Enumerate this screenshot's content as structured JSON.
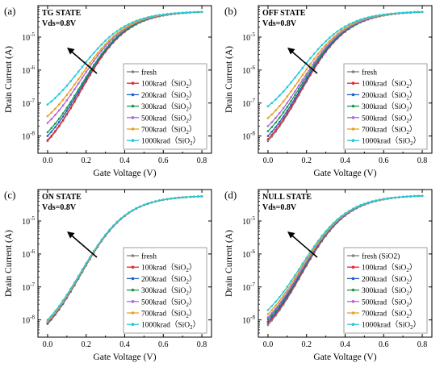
{
  "figure": {
    "xlabel": "Gate Voltage (V)",
    "ylabel": "Drain Current (A)",
    "x_ticks": [
      "0.0",
      "0.2",
      "0.4",
      "0.6",
      "0.8"
    ],
    "y_tick_labels": [
      {
        "exp": -8,
        "base": "10",
        "power": "-8"
      },
      {
        "exp": -7,
        "base": "10",
        "power": "-7"
      },
      {
        "exp": -6,
        "base": "10",
        "power": "-6"
      },
      {
        "exp": -5,
        "base": "10",
        "power": "-5"
      }
    ]
  },
  "series_colors": [
    "#808080",
    "#e8282d",
    "#1f5fc8",
    "#1a9a4a",
    "#b065e0",
    "#e8a020",
    "#22c8d8"
  ],
  "chart_data": [
    {
      "type": "line",
      "panel_letter": "(a)",
      "state": "TG STATE",
      "condition": "Vds=0.8V",
      "xlabel": "Gate Voltage (V)",
      "ylabel": "Drain Current (A)",
      "xlim": [
        -0.05,
        0.85
      ],
      "ylim": [
        3e-09,
        9e-05
      ],
      "yscale": "log",
      "legend_position": "bottom-right",
      "x": [
        0,
        0.02,
        0.04,
        0.06,
        0.08,
        0.1,
        0.12,
        0.14,
        0.16,
        0.18,
        0.2,
        0.22,
        0.24,
        0.26,
        0.28,
        0.3,
        0.32,
        0.34,
        0.36,
        0.38,
        0.4,
        0.42,
        0.44,
        0.46,
        0.48,
        0.5,
        0.52,
        0.54,
        0.56,
        0.58,
        0.6,
        0.62,
        0.64,
        0.66,
        0.68,
        0.7,
        0.72,
        0.74,
        0.76,
        0.78,
        0.8
      ],
      "series": [
        {
          "name": "fresh",
          "ionset": 7e-09,
          "ion": 5.8e-05
        },
        {
          "name": "100krad(SiO2)",
          "label_main": "100krad",
          "label_sub": "2",
          "ionset": 7.5e-09,
          "ion": 5.8e-05
        },
        {
          "name": "200krad(SiO2)",
          "label_main": "200krad",
          "label_sub": "2",
          "ionset": 1e-08,
          "ion": 5.8e-05
        },
        {
          "name": "300krad(SiO2)",
          "label_main": "300krad",
          "label_sub": "2",
          "ionset": 1.3e-08,
          "ion": 5.8e-05
        },
        {
          "name": "500krad(SiO2)",
          "label_main": "500krad",
          "label_sub": "2",
          "ionset": 2.5e-08,
          "ion": 5.8e-05
        },
        {
          "name": "700krad(SiO2)",
          "label_main": "700krad",
          "label_sub": "2",
          "ionset": 4e-08,
          "ion": 5.8e-05
        },
        {
          "name": "1000krad(SiO2)",
          "label_main": "1000krad",
          "label_sub": "2",
          "ionset": 9e-08,
          "ion": 5.8e-05
        }
      ]
    },
    {
      "type": "line",
      "panel_letter": "(b)",
      "state": "OFF STATE",
      "condition": "Vds=0.8V",
      "xlabel": "Gate Voltage (V)",
      "ylabel": "Drain Current (A)",
      "xlim": [
        -0.05,
        0.85
      ],
      "ylim": [
        3e-09,
        9e-05
      ],
      "yscale": "log",
      "legend_position": "bottom-right",
      "x": [
        0,
        0.02,
        0.04,
        0.06,
        0.08,
        0.1,
        0.12,
        0.14,
        0.16,
        0.18,
        0.2,
        0.22,
        0.24,
        0.26,
        0.28,
        0.3,
        0.32,
        0.34,
        0.36,
        0.38,
        0.4,
        0.42,
        0.44,
        0.46,
        0.48,
        0.5,
        0.52,
        0.54,
        0.56,
        0.58,
        0.6,
        0.62,
        0.64,
        0.66,
        0.68,
        0.7,
        0.72,
        0.74,
        0.76,
        0.78,
        0.8
      ],
      "series": [
        {
          "name": "fresh",
          "ionset": 7e-09,
          "ion": 5.8e-05
        },
        {
          "name": "100krad(SiO2)",
          "label_main": "100krad",
          "label_sub": "2",
          "ionset": 8e-09,
          "ion": 5.8e-05
        },
        {
          "name": "200krad(SiO2)",
          "label_main": "200krad",
          "label_sub": "2",
          "ionset": 1e-08,
          "ion": 5.8e-05
        },
        {
          "name": "300krad(SiO2)",
          "label_main": "300krad",
          "label_sub": "2",
          "ionset": 1.4e-08,
          "ion": 5.8e-05
        },
        {
          "name": "500krad(SiO2)",
          "label_main": "500krad",
          "label_sub": "2",
          "ionset": 2e-08,
          "ion": 5.8e-05
        },
        {
          "name": "700krad(SiO2)",
          "label_main": "700krad",
          "label_sub": "2",
          "ionset": 3.5e-08,
          "ion": 5.8e-05
        },
        {
          "name": "1000krad(SiO2)",
          "label_main": "1000krad",
          "label_sub": "2",
          "ionset": 8e-08,
          "ion": 5.8e-05
        }
      ]
    },
    {
      "type": "line",
      "panel_letter": "(c)",
      "state": "ON STATE",
      "condition": "Vds=0.8V",
      "xlabel": "Gate Voltage (V)",
      "ylabel": "Drain Current (A)",
      "xlim": [
        -0.05,
        0.85
      ],
      "ylim": [
        3e-09,
        9e-05
      ],
      "yscale": "log",
      "legend_position": "bottom-right",
      "x": [
        0,
        0.02,
        0.04,
        0.06,
        0.08,
        0.1,
        0.12,
        0.14,
        0.16,
        0.18,
        0.2,
        0.22,
        0.24,
        0.26,
        0.28,
        0.3,
        0.32,
        0.34,
        0.36,
        0.38,
        0.4,
        0.42,
        0.44,
        0.46,
        0.48,
        0.5,
        0.52,
        0.54,
        0.56,
        0.58,
        0.6,
        0.62,
        0.64,
        0.66,
        0.68,
        0.7,
        0.72,
        0.74,
        0.76,
        0.78,
        0.8
      ],
      "series": [
        {
          "name": "fresh",
          "ionset": 7.5e-09,
          "ion": 5.6e-05
        },
        {
          "name": "100krad(SiO2)",
          "label_main": "100krad",
          "label_sub": "2",
          "ionset": 7.8e-09,
          "ion": 5.6e-05
        },
        {
          "name": "200krad(SiO2)",
          "label_main": "200krad",
          "label_sub": "2",
          "ionset": 8e-09,
          "ion": 5.6e-05
        },
        {
          "name": "300krad(SiO2)",
          "label_main": "300krad",
          "label_sub": "2",
          "ionset": 8.3e-09,
          "ion": 5.6e-05
        },
        {
          "name": "500krad(SiO2)",
          "label_main": "500krad",
          "label_sub": "2",
          "ionset": 8.6e-09,
          "ion": 5.6e-05
        },
        {
          "name": "700krad(SiO2)",
          "label_main": "700krad",
          "label_sub": "2",
          "ionset": 9e-09,
          "ion": 5.6e-05
        },
        {
          "name": "1000krad(SiO2)",
          "label_main": "1000krad",
          "label_sub": "2",
          "ionset": 1e-08,
          "ion": 5.6e-05
        }
      ]
    },
    {
      "type": "line",
      "panel_letter": "(d)",
      "state": "NULL STATE",
      "condition": "Vds=0.8V",
      "xlabel": "Gate Voltage (V)",
      "ylabel": "Drain Current (A)",
      "xlim": [
        -0.05,
        0.85
      ],
      "ylim": [
        3e-09,
        9e-05
      ],
      "yscale": "log",
      "legend_position": "bottom-right",
      "x": [
        0,
        0.02,
        0.04,
        0.06,
        0.08,
        0.1,
        0.12,
        0.14,
        0.16,
        0.18,
        0.2,
        0.22,
        0.24,
        0.26,
        0.28,
        0.3,
        0.32,
        0.34,
        0.36,
        0.38,
        0.4,
        0.42,
        0.44,
        0.46,
        0.48,
        0.5,
        0.52,
        0.54,
        0.56,
        0.58,
        0.6,
        0.62,
        0.64,
        0.66,
        0.68,
        0.7,
        0.72,
        0.74,
        0.76,
        0.78,
        0.8
      ],
      "series": [
        {
          "name": "fresh (SiO2)",
          "ionset": 7e-09,
          "ion": 5.8e-05
        },
        {
          "name": "100krad(SiO2)",
          "label_main": "100krad",
          "label_sub": "2",
          "ionset": 8e-09,
          "ion": 5.8e-05
        },
        {
          "name": "200krad(SiO2)",
          "label_main": "200krad",
          "label_sub": "2",
          "ionset": 9e-09,
          "ion": 5.8e-05
        },
        {
          "name": "300krad(SiO2)",
          "label_main": "300krad",
          "label_sub": "2",
          "ionset": 1.05e-08,
          "ion": 5.8e-05
        },
        {
          "name": "500krad(SiO2)",
          "label_main": "500krad",
          "label_sub": "2",
          "ionset": 1.2e-08,
          "ion": 5.8e-05
        },
        {
          "name": "700krad(SiO2)",
          "label_main": "700krad",
          "label_sub": "2",
          "ionset": 1.5e-08,
          "ion": 5.8e-05
        },
        {
          "name": "1000krad(SiO2)",
          "label_main": "1000krad",
          "label_sub": "2",
          "ionset": 2e-08,
          "ion": 5.8e-05
        }
      ]
    }
  ]
}
